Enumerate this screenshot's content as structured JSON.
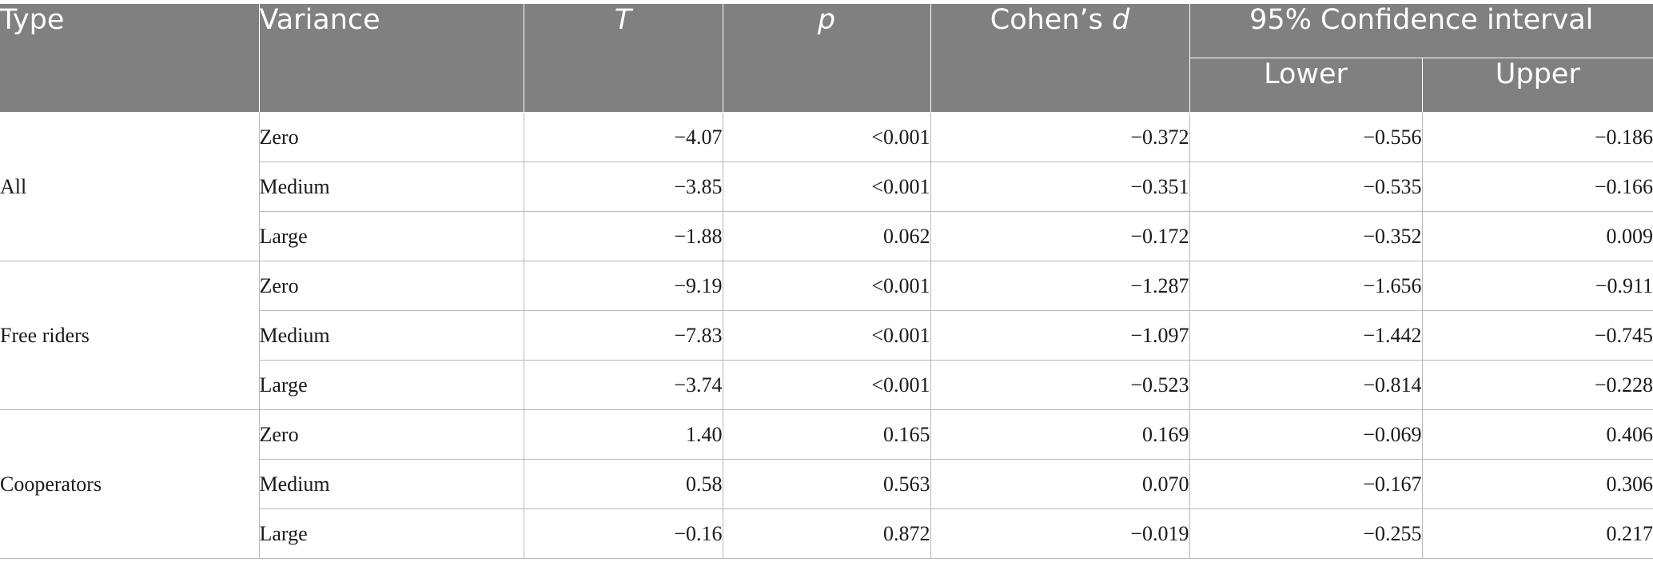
{
  "table": {
    "headers": {
      "type": "Type",
      "variance": "Variance",
      "t": "T",
      "p": "p",
      "cohens_prefix": "Cohen’s ",
      "cohens_d": "d",
      "ci": "95% Confidence interval",
      "lower": "Lower",
      "upper": "Upper"
    },
    "groups": [
      {
        "type": "All",
        "rows": [
          {
            "variance": "Zero",
            "t": "−4.07",
            "p": "<0.001",
            "d": "−0.372",
            "lower": "−0.556",
            "upper": "−0.186"
          },
          {
            "variance": "Medium",
            "t": "−3.85",
            "p": "<0.001",
            "d": "−0.351",
            "lower": "−0.535",
            "upper": "−0.166"
          },
          {
            "variance": "Large",
            "t": "−1.88",
            "p": "0.062",
            "d": "−0.172",
            "lower": "−0.352",
            "upper": "0.009"
          }
        ]
      },
      {
        "type": "Free riders",
        "rows": [
          {
            "variance": "Zero",
            "t": "−9.19",
            "p": "<0.001",
            "d": "−1.287",
            "lower": "−1.656",
            "upper": "−0.911"
          },
          {
            "variance": "Medium",
            "t": "−7.83",
            "p": "<0.001",
            "d": "−1.097",
            "lower": "−1.442",
            "upper": "−0.745"
          },
          {
            "variance": "Large",
            "t": "−3.74",
            "p": "<0.001",
            "d": "−0.523",
            "lower": "−0.814",
            "upper": "−0.228"
          }
        ]
      },
      {
        "type": "Cooperators",
        "rows": [
          {
            "variance": "Zero",
            "t": "1.40",
            "p": "0.165",
            "d": "0.169",
            "lower": "−0.069",
            "upper": "0.406"
          },
          {
            "variance": "Medium",
            "t": "0.58",
            "p": "0.563",
            "d": "0.070",
            "lower": "−0.167",
            "upper": "0.306"
          },
          {
            "variance": "Large",
            "t": "−0.16",
            "p": "0.872",
            "d": "−0.019",
            "lower": "−0.255",
            "upper": "0.217"
          }
        ]
      }
    ],
    "colors": {
      "header_bg": "#808080",
      "header_text": "#ffffff",
      "grid_line": "#b8b8b8"
    }
  }
}
